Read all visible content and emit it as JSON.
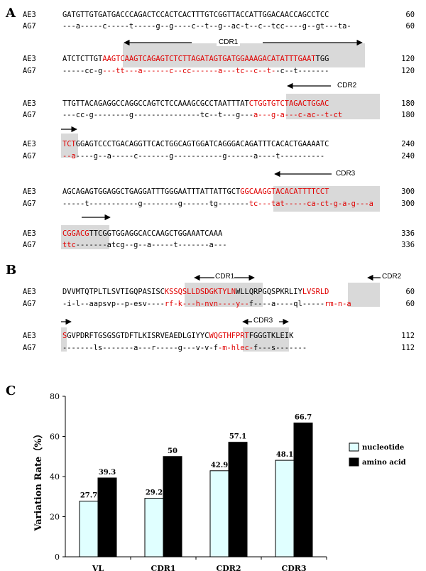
{
  "panels": {
    "a": "A",
    "b": "B",
    "c": "C"
  },
  "panel_a": {
    "rows": [
      {
        "ae3": "GATGTTGTGATGACCCAGACTCCACTCACTTTGTCGGTTACCATTGGACAACCAGCCTCC",
        "ag7": "---a-----c-----t-----g--g----c--t--g--ac-t--c--tcc----g--gt---ta-",
        "ae3_num": "60",
        "ag7_num": "60"
      },
      {
        "ae3": "ATCTCTTGTAAGTCAAGTCAGAGTCTCTTAGATAGTGATGGAAAGACATATTTGAATTGG",
        "ag7": "-----cc-g---tt---a------c--cc------a---tc--c--t--c--t-------",
        "ae3_num": "120",
        "ag7_num": "120"
      },
      {
        "ae3": "TTGTTACAGAGGCCAGGCCAGTCTCCAAAGCGCCTAATTTATCTGGTGTCTAGACTGGAC",
        "ag7": "---cc-g--------g---------------tc--t---g---a---g-a---c-ac--t-ct",
        "ae3_num": "180",
        "ag7_num": "180"
      },
      {
        "ae3": "TCTGGAGTCCCTGACAGGTTCACTGGCAGTGGATCAGGGACAGATTTCACACTGAAAATC",
        "ag7": "--a----g--a-----c-------g-----------g------a----t----------",
        "ae3_num": "240",
        "ag7_num": "240"
      },
      {
        "ae3": "AGCAGAGTGGAGGCTGAGGATTTGGGAATTTATTATTGCTGGCAAGGTACACATTTTCCT",
        "ag7": "-----t-----------g--------g------tg-------tc---tat-----ca-ct-g-a-g---a",
        "ae3_num": "300",
        "ag7_num": "300"
      },
      {
        "ae3": "CGGACGTTCGGTGGAGGCACCAAGCTGGAAATCAAA",
        "ag7": "ttc-------atcg--g--a-----t-------a---",
        "ae3_num": "336",
        "ag7_num": "336"
      }
    ]
  },
  "panel_b": {
    "rows": [
      {
        "ae3": "DVVMTQTPLTLSVTIGQPASISCKSSQSLLDSDGKTYLNWLLQRPGQSPKRLIYLVSRLD",
        "ag7": "-i-l--aapsvp--p-esv----rf-k---h-nvn----y--f----a----ql-----rm-n-a",
        "ae3_num": "60",
        "ag7_num": "60"
      },
      {
        "ae3": "SGVPDRFTGSGSGTDFTLKISRVEAEDLGIYYCWQGTHFPRTFGGGTKLEIK",
        "ag7": "-------ls-------a---r-----g---v-v-f-m-hlec-f---s-------",
        "ae3_num": "112",
        "ag7_num": "112"
      }
    ]
  },
  "labels": {
    "ae3": "AE3",
    "ag7": "AG7",
    "cdr1": "CDR1",
    "cdr2": "CDR2",
    "cdr3": "CDR3"
  },
  "chart_data": {
    "type": "bar",
    "categories": [
      "VL",
      "CDR1",
      "CDR2",
      "CDR3"
    ],
    "series": [
      {
        "name": "nucleotide",
        "values": [
          27.7,
          29.2,
          42.9,
          48.1
        ],
        "color": "#e0ffff"
      },
      {
        "name": "amino acid",
        "values": [
          39.3,
          50,
          57.1,
          66.7
        ],
        "color": "#000000"
      }
    ],
    "value_labels": {
      "nucleotide": [
        "27.7",
        "29.2",
        "42.9",
        "48.1"
      ],
      "amino acid": [
        "39.3",
        "50",
        "57.1",
        "66.7"
      ]
    },
    "xlabel": "",
    "ylabel": "Variation Rate（%）",
    "ylim": [
      0,
      80
    ],
    "yticks": [
      "0",
      "20",
      "40",
      "60",
      "80"
    ],
    "grid": false,
    "legend": "right"
  }
}
